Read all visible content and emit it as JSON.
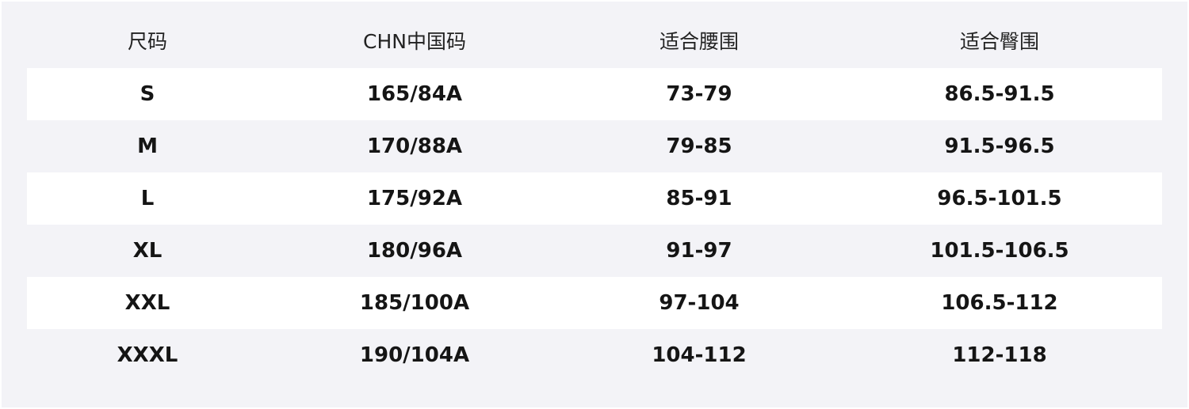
{
  "table": {
    "headers": [
      "尺码",
      "CHN中国码",
      "适合腰围",
      "适合臀围"
    ],
    "rows": [
      [
        "S",
        "165/84A",
        "73-79",
        "86.5-91.5"
      ],
      [
        "M",
        "170/88A",
        "79-85",
        "91.5-96.5"
      ],
      [
        "L",
        "175/92A",
        "85-91",
        "96.5-101.5"
      ],
      [
        "XL",
        "180/96A",
        "91-97",
        "101.5-106.5"
      ],
      [
        "XXL",
        "185/100A",
        "97-104",
        "106.5-112"
      ],
      [
        "XXXL",
        "190/104A",
        "104-112",
        "112-118"
      ]
    ]
  },
  "colors": {
    "background": "#f3f3f7",
    "stripe": "#ffffff",
    "text": "#151515"
  }
}
